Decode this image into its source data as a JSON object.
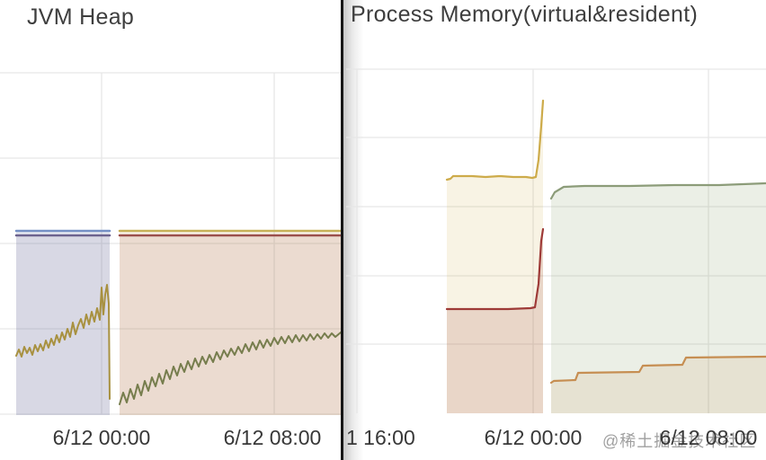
{
  "watermark": {
    "text": "@稀土掘金技术社区"
  },
  "panels": [
    {
      "id": "jvm-heap",
      "title": "JVM Heap"
    },
    {
      "id": "process-memory",
      "title": "Process Memory(virtual&resident)"
    }
  ],
  "chart_data": [
    {
      "panel_id": "jvm-heap",
      "type": "area",
      "title": "JVM Heap",
      "x_ticks": [
        {
          "label": "6/12 00:00",
          "x": 113,
          "align": "center"
        },
        {
          "label": "6/12 08:00",
          "x": 303,
          "align": "center"
        }
      ],
      "y_ticks_visible": false,
      "legend_visible": false,
      "grid": {
        "h": [
          81,
          176,
          271,
          366,
          461
        ],
        "v": [
          113,
          305
        ],
        "x_range": [
          0,
          379
        ],
        "y_range": [
          81,
          461
        ],
        "color": "#e6e6e6"
      },
      "y_base": 462,
      "series": [
        {
          "name": "series-blue-flat",
          "color": "#7590c5",
          "line_width": 2.5,
          "fill": "rgba(110,125,175,0.16)",
          "points": [
            [
              18,
              257
            ],
            [
              122,
              257
            ]
          ]
        },
        {
          "name": "series-purple-flat",
          "color": "#6c628e",
          "line_width": 2.5,
          "fill": "rgba(108,98,142,0.13)",
          "points": [
            [
              18,
              262
            ],
            [
              122,
              262
            ]
          ]
        },
        {
          "name": "series-gold-jagged",
          "color": "#a89140",
          "line_width": 2,
          "fill": "none",
          "points": [
            [
              18,
              396
            ],
            [
              21,
              389
            ],
            [
              24,
              397
            ],
            [
              27,
              386
            ],
            [
              30,
              393
            ],
            [
              33,
              387
            ],
            [
              36,
              395
            ],
            [
              39,
              384
            ],
            [
              42,
              391
            ],
            [
              45,
              383
            ],
            [
              48,
              390
            ],
            [
              51,
              379
            ],
            [
              54,
              387
            ],
            [
              57,
              377
            ],
            [
              60,
              384
            ],
            [
              63,
              373
            ],
            [
              66,
              381
            ],
            [
              69,
              370
            ],
            [
              72,
              378
            ],
            [
              75,
              366
            ],
            [
              78,
              375
            ],
            [
              81,
              359
            ],
            [
              84,
              372
            ],
            [
              87,
              362
            ],
            [
              90,
              355
            ],
            [
              93,
              365
            ],
            [
              96,
              350
            ],
            [
              99,
              361
            ],
            [
              102,
              347
            ],
            [
              105,
              358
            ],
            [
              108,
              343
            ],
            [
              111,
              356
            ],
            [
              113,
              320
            ],
            [
              115,
              350
            ],
            [
              117,
              328
            ],
            [
              119,
              317
            ],
            [
              121,
              338
            ],
            [
              122,
              444
            ]
          ]
        },
        {
          "name": "series-yellow-flat",
          "color": "#c7b158",
          "line_width": 2.5,
          "fill": "rgba(198,160,70,0.12)",
          "points": [
            [
              133,
              257
            ],
            [
              379,
              257
            ]
          ]
        },
        {
          "name": "series-red-flat",
          "color": "#9b4f4c",
          "line_width": 2.5,
          "fill": "rgba(163,88,70,0.15)",
          "points": [
            [
              133,
              262
            ],
            [
              379,
              262
            ]
          ]
        },
        {
          "name": "series-olive-jagged",
          "color": "#767d4d",
          "line_width": 2,
          "fill": "none",
          "points": [
            [
              133,
              450
            ],
            [
              137,
              437
            ],
            [
              141,
              448
            ],
            [
              145,
              433
            ],
            [
              149,
              444
            ],
            [
              153,
              428
            ],
            [
              157,
              440
            ],
            [
              161,
              424
            ],
            [
              165,
              435
            ],
            [
              169,
              420
            ],
            [
              173,
              430
            ],
            [
              177,
              416
            ],
            [
              181,
              427
            ],
            [
              185,
              412
            ],
            [
              189,
              422
            ],
            [
              193,
              408
            ],
            [
              197,
              418
            ],
            [
              201,
              405
            ],
            [
              205,
              414
            ],
            [
              209,
              402
            ],
            [
              213,
              411
            ],
            [
              217,
              399
            ],
            [
              221,
              408
            ],
            [
              225,
              397
            ],
            [
              229,
              405
            ],
            [
              233,
              395
            ],
            [
              237,
              403
            ],
            [
              241,
              392
            ],
            [
              245,
              400
            ],
            [
              249,
              390
            ],
            [
              253,
              397
            ],
            [
              257,
              388
            ],
            [
              261,
              395
            ],
            [
              265,
              386
            ],
            [
              269,
              393
            ],
            [
              273,
              383
            ],
            [
              277,
              391
            ],
            [
              281,
              381
            ],
            [
              285,
              389
            ],
            [
              289,
              379
            ],
            [
              293,
              387
            ],
            [
              297,
              378
            ],
            [
              301,
              385
            ],
            [
              305,
              376
            ],
            [
              309,
              383
            ],
            [
              313,
              375
            ],
            [
              317,
              382
            ],
            [
              321,
              374
            ],
            [
              325,
              381
            ],
            [
              329,
              373
            ],
            [
              333,
              380
            ],
            [
              337,
              373
            ],
            [
              341,
              379
            ],
            [
              345,
              372
            ],
            [
              349,
              378
            ],
            [
              353,
              372
            ],
            [
              357,
              377
            ],
            [
              361,
              371
            ],
            [
              365,
              376
            ],
            [
              369,
              371
            ],
            [
              373,
              375
            ],
            [
              379,
              370
            ]
          ]
        }
      ]
    },
    {
      "panel_id": "process-memory",
      "type": "area",
      "title": "Process Memory(virtual&resident)",
      "x_ticks": [
        {
          "label": "1 16:00",
          "x": 385,
          "align": "left"
        },
        {
          "label": "6/12 00:00",
          "x": 593,
          "align": "center"
        },
        {
          "label": "6/12 08:00",
          "x": 788,
          "align": "center"
        }
      ],
      "y_ticks_visible": false,
      "legend_visible": false,
      "grid": {
        "h": [
          77,
          153,
          230,
          307,
          383
        ],
        "v": [
          397,
          593,
          788
        ],
        "x_range": [
          385,
          852
        ],
        "y_range": [
          77,
          460
        ],
        "color": "#e6e6e6"
      },
      "y_base": 460,
      "series": [
        {
          "name": "series-yellow-spike",
          "color": "#cdab4a",
          "line_width": 2.2,
          "fill": "rgba(206,172,72,0.15)",
          "points": [
            [
              497,
              200
            ],
            [
              501,
              199
            ],
            [
              504,
              196
            ],
            [
              511,
              196
            ],
            [
              525,
              196
            ],
            [
              540,
              197
            ],
            [
              556,
              196
            ],
            [
              571,
              197
            ],
            [
              585,
              197
            ],
            [
              592,
              198
            ],
            [
              596,
              197
            ],
            [
              599,
              178
            ],
            [
              602,
              140
            ],
            [
              604,
              112
            ]
          ]
        },
        {
          "name": "series-red-spike",
          "color": "#9e3a37",
          "line_width": 2.2,
          "fill": "rgba(158,60,54,0.16)",
          "points": [
            [
              497,
              344
            ],
            [
              530,
              344
            ],
            [
              565,
              344
            ],
            [
              590,
              343
            ],
            [
              595,
              342
            ],
            [
              599,
              316
            ],
            [
              602,
              268
            ],
            [
              604,
              255
            ]
          ]
        },
        {
          "name": "series-green-flat",
          "color": "#8c9c79",
          "line_width": 2.2,
          "fill": "rgba(138,158,108,0.17)",
          "points": [
            [
              613,
              221
            ],
            [
              617,
              214
            ],
            [
              627,
              208
            ],
            [
              650,
              207
            ],
            [
              700,
              207
            ],
            [
              750,
              206
            ],
            [
              800,
              206
            ],
            [
              852,
              204
            ]
          ]
        },
        {
          "name": "series-orange-steps",
          "color": "#c68e52",
          "line_width": 2.2,
          "fill": "rgba(198,138,80,0.13)",
          "points": [
            [
              613,
              426
            ],
            [
              616,
              424
            ],
            [
              640,
              423
            ],
            [
              643,
              415
            ],
            [
              711,
              414
            ],
            [
              715,
              407
            ],
            [
              759,
              406
            ],
            [
              763,
              398
            ],
            [
              852,
              397
            ]
          ]
        }
      ]
    }
  ]
}
